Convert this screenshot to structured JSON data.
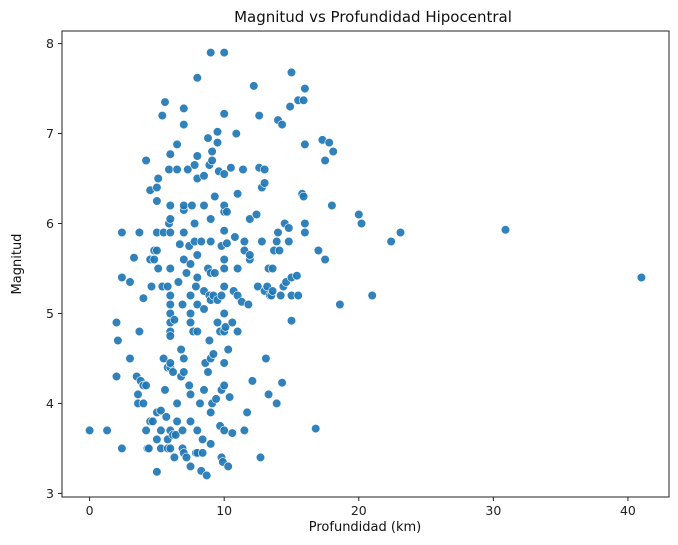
{
  "chart_data": {
    "type": "scatter",
    "title": "Magnitud vs Profundidad Hipocentral",
    "xlabel": "Profundidad (km)",
    "ylabel": "Magnitud",
    "xlim": [
      -2.05,
      43.05
    ],
    "ylim": [
      2.96,
      8.14
    ],
    "xticks": [
      0,
      10,
      20,
      30,
      40
    ],
    "yticks": [
      3,
      4,
      5,
      6,
      7,
      8
    ],
    "grid": false,
    "legend": "none",
    "colors": {
      "point": "#1f77b4",
      "point_edge": "#ffffff",
      "axes": "#222222"
    },
    "points": [
      [
        0.0,
        3.7
      ],
      [
        1.3,
        3.7
      ],
      [
        2.4,
        3.5
      ],
      [
        2.0,
        4.3
      ],
      [
        2.0,
        4.9
      ],
      [
        2.1,
        4.7
      ],
      [
        2.4,
        5.4
      ],
      [
        2.4,
        5.9
      ],
      [
        3.0,
        4.5
      ],
      [
        3.0,
        5.35
      ],
      [
        3.3,
        5.62
      ],
      [
        3.5,
        4.3
      ],
      [
        3.6,
        4.1
      ],
      [
        3.6,
        4.0
      ],
      [
        3.7,
        5.9
      ],
      [
        3.7,
        4.8
      ],
      [
        3.8,
        4.25
      ],
      [
        4.0,
        4.0
      ],
      [
        4.0,
        5.17
      ],
      [
        4.0,
        4.2
      ],
      [
        4.2,
        4.2
      ],
      [
        4.2,
        6.7
      ],
      [
        4.2,
        3.7
      ],
      [
        4.3,
        3.5
      ],
      [
        4.4,
        3.5
      ],
      [
        4.5,
        3.8
      ],
      [
        4.5,
        6.37
      ],
      [
        4.5,
        5.6
      ],
      [
        4.6,
        5.3
      ],
      [
        4.7,
        3.8
      ],
      [
        4.8,
        5.7
      ],
      [
        4.8,
        5.6
      ],
      [
        5.0,
        3.24
      ],
      [
        5.0,
        3.9
      ],
      [
        5.0,
        3.6
      ],
      [
        5.0,
        6.25
      ],
      [
        5.0,
        6.4
      ],
      [
        5.0,
        5.9
      ],
      [
        5.0,
        5.7
      ],
      [
        5.1,
        6.5
      ],
      [
        5.1,
        5.5
      ],
      [
        5.3,
        3.5
      ],
      [
        5.3,
        3.7
      ],
      [
        5.3,
        3.92
      ],
      [
        5.4,
        5.3
      ],
      [
        5.4,
        7.2
      ],
      [
        5.5,
        4.5
      ],
      [
        5.5,
        5.9
      ],
      [
        5.6,
        7.35
      ],
      [
        5.6,
        4.15
      ],
      [
        5.7,
        3.85
      ],
      [
        5.8,
        4.4
      ],
      [
        5.8,
        3.6
      ],
      [
        5.8,
        3.5
      ],
      [
        5.8,
        5.3
      ],
      [
        5.9,
        6.0
      ],
      [
        5.9,
        6.6
      ],
      [
        6.0,
        4.8
      ],
      [
        6.0,
        4.9
      ],
      [
        6.0,
        5.0
      ],
      [
        6.0,
        4.75
      ],
      [
        6.0,
        5.1
      ],
      [
        6.0,
        5.2
      ],
      [
        6.0,
        5.5
      ],
      [
        6.0,
        5.9
      ],
      [
        6.0,
        6.05
      ],
      [
        6.0,
        6.2
      ],
      [
        6.0,
        6.77
      ],
      [
        6.0,
        4.4
      ],
      [
        6.0,
        4.45
      ],
      [
        6.0,
        3.5
      ],
      [
        6.0,
        3.7
      ],
      [
        6.2,
        4.35
      ],
      [
        6.2,
        3.65
      ],
      [
        6.3,
        3.4
      ],
      [
        6.3,
        4.93
      ],
      [
        6.4,
        3.65
      ],
      [
        6.5,
        6.6
      ],
      [
        6.5,
        6.88
      ],
      [
        6.5,
        4.0
      ],
      [
        6.5,
        3.8
      ],
      [
        6.6,
        5.35
      ],
      [
        6.7,
        5.77
      ],
      [
        6.8,
        4.3
      ],
      [
        6.8,
        4.6
      ],
      [
        6.9,
        3.5
      ],
      [
        6.9,
        3.7
      ],
      [
        6.9,
        5.1
      ],
      [
        7.0,
        5.6
      ],
      [
        7.0,
        5.9
      ],
      [
        7.0,
        6.15
      ],
      [
        7.0,
        6.2
      ],
      [
        7.0,
        4.5
      ],
      [
        7.0,
        4.35
      ],
      [
        7.0,
        3.45
      ],
      [
        7.0,
        7.28
      ],
      [
        7.0,
        7.1
      ],
      [
        7.2,
        5.45
      ],
      [
        7.2,
        3.4
      ],
      [
        7.3,
        6.6
      ],
      [
        7.4,
        5.75
      ],
      [
        7.4,
        4.2
      ],
      [
        7.5,
        3.3
      ],
      [
        7.5,
        3.8
      ],
      [
        7.5,
        4.1
      ],
      [
        7.5,
        4.9
      ],
      [
        7.5,
        5.0
      ],
      [
        7.5,
        5.2
      ],
      [
        7.5,
        5.55
      ],
      [
        7.6,
        6.2
      ],
      [
        7.7,
        4.8
      ],
      [
        7.8,
        6.65
      ],
      [
        7.8,
        6.0
      ],
      [
        7.8,
        5.8
      ],
      [
        7.9,
        5.3
      ],
      [
        7.9,
        3.45
      ],
      [
        8.0,
        3.45
      ],
      [
        8.0,
        3.7
      ],
      [
        8.0,
        4.8
      ],
      [
        8.0,
        5.1
      ],
      [
        8.0,
        5.4
      ],
      [
        8.0,
        5.65
      ],
      [
        8.0,
        6.5
      ],
      [
        8.0,
        6.75
      ],
      [
        8.0,
        7.62
      ],
      [
        8.2,
        4.0
      ],
      [
        8.3,
        5.8
      ],
      [
        8.3,
        3.25
      ],
      [
        8.4,
        3.45
      ],
      [
        8.4,
        3.6
      ],
      [
        8.5,
        4.15
      ],
      [
        8.5,
        5.05
      ],
      [
        8.5,
        5.25
      ],
      [
        8.5,
        6.2
      ],
      [
        8.5,
        6.53
      ],
      [
        8.6,
        4.45
      ],
      [
        8.7,
        3.2
      ],
      [
        8.8,
        4.35
      ],
      [
        8.8,
        6.95
      ],
      [
        8.8,
        5.5
      ],
      [
        8.9,
        4.7
      ],
      [
        8.9,
        5.2
      ],
      [
        8.9,
        6.65
      ],
      [
        9.0,
        7.9
      ],
      [
        9.0,
        3.9
      ],
      [
        9.0,
        3.55
      ],
      [
        9.0,
        4.5
      ],
      [
        9.0,
        5.15
      ],
      [
        9.0,
        5.45
      ],
      [
        9.0,
        5.8
      ],
      [
        9.0,
        6.05
      ],
      [
        9.1,
        6.7
      ],
      [
        9.1,
        6.8
      ],
      [
        9.1,
        4.0
      ],
      [
        9.2,
        4.55
      ],
      [
        9.2,
        5.2
      ],
      [
        9.3,
        5.45
      ],
      [
        9.3,
        6.3
      ],
      [
        9.4,
        4.05
      ],
      [
        9.5,
        4.9
      ],
      [
        9.5,
        5.15
      ],
      [
        9.5,
        6.9
      ],
      [
        9.5,
        7.02
      ],
      [
        9.6,
        6.58
      ],
      [
        9.7,
        4.8
      ],
      [
        9.7,
        3.75
      ],
      [
        9.8,
        3.4
      ],
      [
        9.8,
        4.15
      ],
      [
        9.8,
        5.2
      ],
      [
        9.8,
        5.75
      ],
      [
        9.9,
        3.35
      ],
      [
        10.0,
        3.7
      ],
      [
        10.0,
        4.2
      ],
      [
        10.0,
        4.45
      ],
      [
        10.0,
        4.8
      ],
      [
        10.0,
        5.0
      ],
      [
        10.0,
        5.3
      ],
      [
        10.0,
        5.5
      ],
      [
        10.0,
        5.6
      ],
      [
        10.0,
        5.92
      ],
      [
        10.0,
        6.13
      ],
      [
        10.0,
        6.2
      ],
      [
        10.0,
        6.55
      ],
      [
        10.0,
        7.22
      ],
      [
        10.0,
        7.9
      ],
      [
        10.1,
        4.85
      ],
      [
        10.2,
        5.78
      ],
      [
        10.2,
        6.13
      ],
      [
        10.3,
        4.6
      ],
      [
        10.3,
        3.3
      ],
      [
        10.4,
        4.07
      ],
      [
        10.5,
        6.62
      ],
      [
        10.6,
        3.67
      ],
      [
        10.6,
        4.9
      ],
      [
        10.7,
        5.25
      ],
      [
        10.8,
        5.85
      ],
      [
        10.9,
        7.0
      ],
      [
        11.0,
        4.8
      ],
      [
        11.0,
        5.2
      ],
      [
        11.0,
        6.33
      ],
      [
        11.0,
        5.5
      ],
      [
        11.3,
        5.13
      ],
      [
        11.4,
        6.6
      ],
      [
        11.5,
        3.7
      ],
      [
        11.5,
        5.8
      ],
      [
        11.5,
        5.7
      ],
      [
        11.7,
        3.9
      ],
      [
        11.8,
        5.1
      ],
      [
        11.9,
        5.6
      ],
      [
        11.9,
        5.65
      ],
      [
        11.9,
        6.05
      ],
      [
        12.1,
        4.25
      ],
      [
        12.2,
        7.53
      ],
      [
        12.4,
        6.1
      ],
      [
        12.5,
        5.3
      ],
      [
        12.6,
        6.62
      ],
      [
        12.6,
        7.2
      ],
      [
        12.7,
        3.4
      ],
      [
        12.8,
        5.8
      ],
      [
        12.8,
        6.4
      ],
      [
        13.0,
        5.25
      ],
      [
        13.0,
        6.45
      ],
      [
        13.0,
        6.6
      ],
      [
        13.1,
        4.5
      ],
      [
        13.2,
        5.3
      ],
      [
        13.3,
        5.5
      ],
      [
        13.3,
        4.1
      ],
      [
        13.4,
        5.2
      ],
      [
        13.5,
        5.2
      ],
      [
        13.6,
        5.5
      ],
      [
        13.6,
        5.25
      ],
      [
        13.7,
        5.7
      ],
      [
        13.9,
        4.0
      ],
      [
        13.9,
        5.8
      ],
      [
        14.0,
        7.15
      ],
      [
        14.0,
        5.9
      ],
      [
        14.1,
        5.7
      ],
      [
        14.2,
        5.2
      ],
      [
        14.3,
        4.23
      ],
      [
        14.3,
        7.1
      ],
      [
        14.4,
        5.3
      ],
      [
        14.5,
        6.0
      ],
      [
        14.6,
        5.35
      ],
      [
        14.8,
        5.95
      ],
      [
        14.8,
        5.8
      ],
      [
        14.9,
        7.3
      ],
      [
        15.0,
        7.68
      ],
      [
        15.0,
        5.2
      ],
      [
        15.0,
        5.4
      ],
      [
        15.0,
        4.92
      ],
      [
        15.4,
        5.42
      ],
      [
        15.5,
        5.2
      ],
      [
        15.5,
        7.37
      ],
      [
        15.8,
        6.33
      ],
      [
        15.9,
        7.37
      ],
      [
        15.9,
        6.3
      ],
      [
        16.0,
        7.5
      ],
      [
        16.0,
        6.0
      ],
      [
        16.0,
        6.88
      ],
      [
        16.0,
        5.9
      ],
      [
        16.8,
        3.72
      ],
      [
        17.0,
        5.7
      ],
      [
        17.3,
        6.93
      ],
      [
        17.5,
        5.6
      ],
      [
        17.5,
        6.7
      ],
      [
        17.8,
        6.9
      ],
      [
        18.0,
        6.2
      ],
      [
        18.1,
        6.8
      ],
      [
        18.6,
        5.1
      ],
      [
        20.0,
        6.1
      ],
      [
        20.2,
        6.0
      ],
      [
        21.0,
        5.2
      ],
      [
        22.4,
        5.8
      ],
      [
        23.1,
        5.9
      ],
      [
        30.9,
        5.93
      ],
      [
        41.0,
        5.4
      ]
    ]
  }
}
